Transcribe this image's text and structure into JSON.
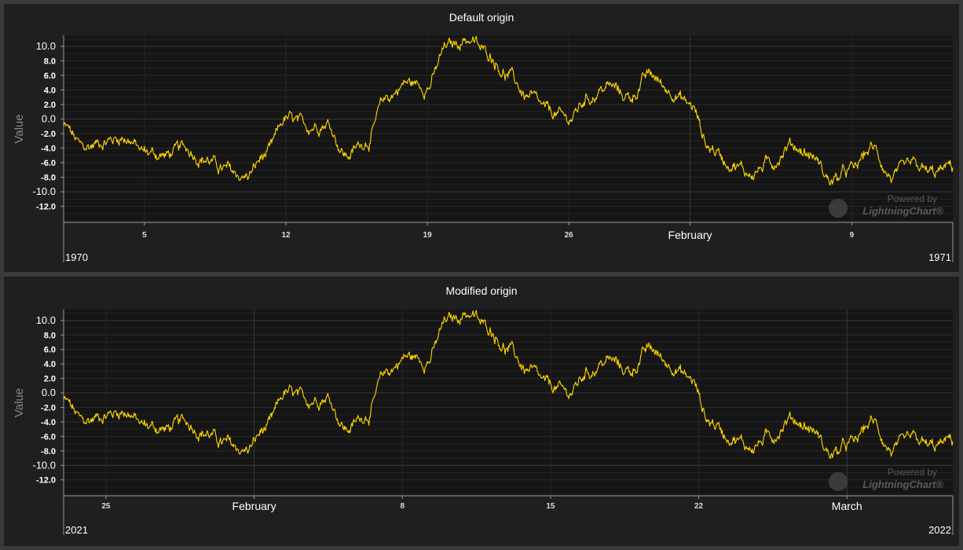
{
  "colors": {
    "background": "#1f1f1f",
    "plot_background": "#151515",
    "series": "#ffd700",
    "grid": "#2e2e2e",
    "axis": "#9a9a9a"
  },
  "watermark": {
    "line1": "Powered by",
    "line2": "LightningChart",
    "mark": "®"
  },
  "chart_data": [
    {
      "type": "line",
      "title": "Default origin",
      "ylabel": "Value",
      "ylim": [
        -14.2,
        11.5
      ],
      "yticks": [
        "10.0",
        "8.0",
        "6.0",
        "4.0",
        "2.0",
        "0.0",
        "-2.0",
        "-4.0",
        "-6.0",
        "-8.0",
        "-10.0",
        "-12.0"
      ],
      "xlim": [
        "1970-01-01",
        "1970-02-14"
      ],
      "xticks": [
        {
          "date": "1970-01-05",
          "label": "5"
        },
        {
          "date": "1970-01-12",
          "label": "12"
        },
        {
          "date": "1970-01-19",
          "label": "19"
        },
        {
          "date": "1970-01-26",
          "label": "26"
        },
        {
          "date": "1970-02-01",
          "label": "February"
        },
        {
          "date": "1970-02-09",
          "label": "9"
        }
      ],
      "year_labels": [
        "1970",
        "1971"
      ],
      "series": [
        {
          "x": [
            "1970-01-01",
            "1970-01-02",
            "1970-01-03",
            "1970-01-04",
            "1970-01-05",
            "1970-01-06",
            "1970-01-07",
            "1970-01-08",
            "1970-01-09",
            "1970-01-10",
            "1970-01-11",
            "1970-01-12",
            "1970-01-13",
            "1970-01-14",
            "1970-01-15",
            "1970-01-16",
            "1970-01-17",
            "1970-01-18",
            "1970-01-19",
            "1970-01-20",
            "1970-01-21",
            "1970-01-22",
            "1970-01-23",
            "1970-01-24",
            "1970-01-25",
            "1970-01-26",
            "1970-01-27",
            "1970-01-28",
            "1970-01-29",
            "1970-01-30",
            "1970-01-31",
            "1970-02-01",
            "1970-02-02",
            "1970-02-03",
            "1970-02-04",
            "1970-02-05",
            "1970-02-06",
            "1970-02-07",
            "1970-02-08",
            "1970-02-09",
            "1970-02-10",
            "1970-02-11",
            "1970-02-12",
            "1970-02-13",
            "1970-02-14"
          ],
          "values": [
            -1.0,
            -4.0,
            -3.0,
            -2.5,
            -4.5,
            -5.0,
            -4.0,
            -5.5,
            -7.0,
            -8.0,
            -5.0,
            0.0,
            -1.0,
            -0.5,
            -5.0,
            -3.0,
            3.0,
            5.0,
            4.5,
            10.0,
            11.0,
            9.0,
            6.0,
            3.0,
            1.0,
            0.0,
            3.0,
            4.5,
            3.0,
            6.0,
            4.0,
            2.0,
            -4.0,
            -6.0,
            -7.5,
            -6.0,
            -3.5,
            -5.0,
            -8.5,
            -7.0,
            -4.0,
            -8.0,
            -6.5,
            -7.5,
            -6.5
          ]
        }
      ]
    },
    {
      "type": "line",
      "title": "Modified origin",
      "ylabel": "Value",
      "ylim": [
        -14.2,
        11.5
      ],
      "yticks": [
        "10.0",
        "8.0",
        "6.0",
        "4.0",
        "2.0",
        "0.0",
        "-2.0",
        "-4.0",
        "-6.0",
        "-8.0",
        "-10.0",
        "-12.0"
      ],
      "xlim": [
        "2021-01-23",
        "2021-03-06"
      ],
      "xticks": [
        {
          "date": "2021-01-25",
          "label": "25"
        },
        {
          "date": "2021-02-01",
          "label": "February"
        },
        {
          "date": "2021-02-08",
          "label": "8"
        },
        {
          "date": "2021-02-15",
          "label": "15"
        },
        {
          "date": "2021-02-22",
          "label": "22"
        },
        {
          "date": "2021-03-01",
          "label": "March"
        }
      ],
      "year_labels": [
        "2021",
        "2022"
      ],
      "series": [
        {
          "x": [
            "1970-01-01",
            "1970-01-02",
            "1970-01-03",
            "1970-01-04",
            "1970-01-05",
            "1970-01-06",
            "1970-01-07",
            "1970-01-08",
            "1970-01-09",
            "1970-01-10",
            "1970-01-11",
            "1970-01-12",
            "1970-01-13",
            "1970-01-14",
            "1970-01-15",
            "1970-01-16",
            "1970-01-17",
            "1970-01-18",
            "1970-01-19",
            "1970-01-20",
            "1970-01-21",
            "1970-01-22",
            "1970-01-23",
            "1970-01-24",
            "1970-01-25",
            "1970-01-26",
            "1970-01-27",
            "1970-01-28",
            "1970-01-29",
            "1970-01-30",
            "1970-01-31",
            "1970-02-01",
            "1970-02-02",
            "1970-02-03",
            "1970-02-04",
            "1970-02-05",
            "1970-02-06",
            "1970-02-07",
            "1970-02-08",
            "1970-02-09",
            "1970-02-10",
            "1970-02-11",
            "1970-02-12",
            "1970-02-13",
            "1970-02-14"
          ],
          "values": [
            -1.0,
            -4.0,
            -3.0,
            -2.5,
            -4.5,
            -5.0,
            -4.0,
            -5.5,
            -7.0,
            -8.0,
            -5.0,
            0.0,
            -1.0,
            -0.5,
            -5.0,
            -3.0,
            3.0,
            5.0,
            4.5,
            10.0,
            11.0,
            9.0,
            6.0,
            3.0,
            1.0,
            0.0,
            3.0,
            4.5,
            3.0,
            6.0,
            4.0,
            2.0,
            -4.0,
            -6.0,
            -7.5,
            -6.0,
            -3.5,
            -5.0,
            -8.5,
            -7.0,
            -4.0,
            -8.0,
            -6.5,
            -7.5,
            -6.5
          ]
        }
      ]
    }
  ]
}
